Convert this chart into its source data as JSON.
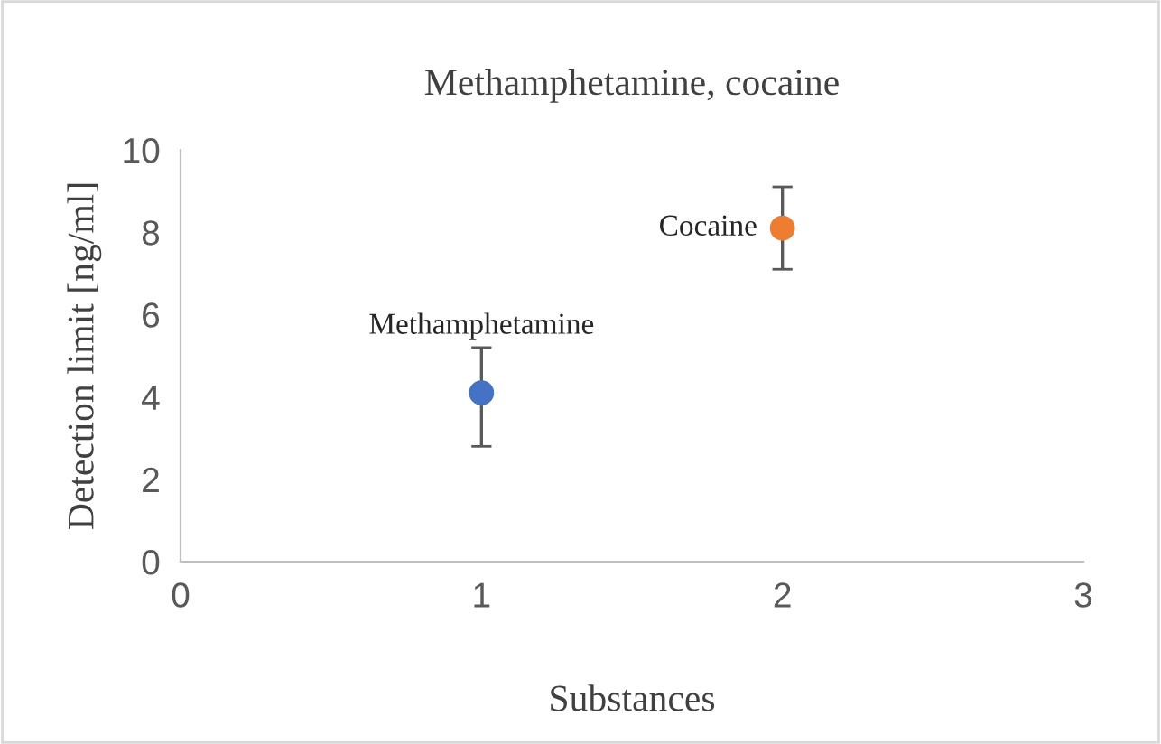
{
  "chart_data": {
    "type": "scatter",
    "title": "Methamphetamine, cocaine",
    "xlabel": "Substances",
    "ylabel": "Detection limit [ng/ml]",
    "series": [
      {
        "name": "Methamphetamine",
        "color": "#4472c4",
        "x": [
          1
        ],
        "values": [
          4.1
        ],
        "errors": [
          [
            2.8,
            5.2
          ]
        ]
      },
      {
        "name": "Cocaine",
        "color": "#ed7d31",
        "x": [
          2
        ],
        "values": [
          8.1
        ],
        "errors": [
          [
            7.1,
            9.1
          ]
        ]
      }
    ],
    "xlim": [
      0,
      3
    ],
    "xticks": [
      0,
      1,
      2,
      3
    ],
    "ylim": [
      0,
      10
    ],
    "yticks": [
      0,
      2,
      4,
      6,
      8,
      10
    ],
    "grid": false,
    "legend": false,
    "marker": "circle"
  }
}
